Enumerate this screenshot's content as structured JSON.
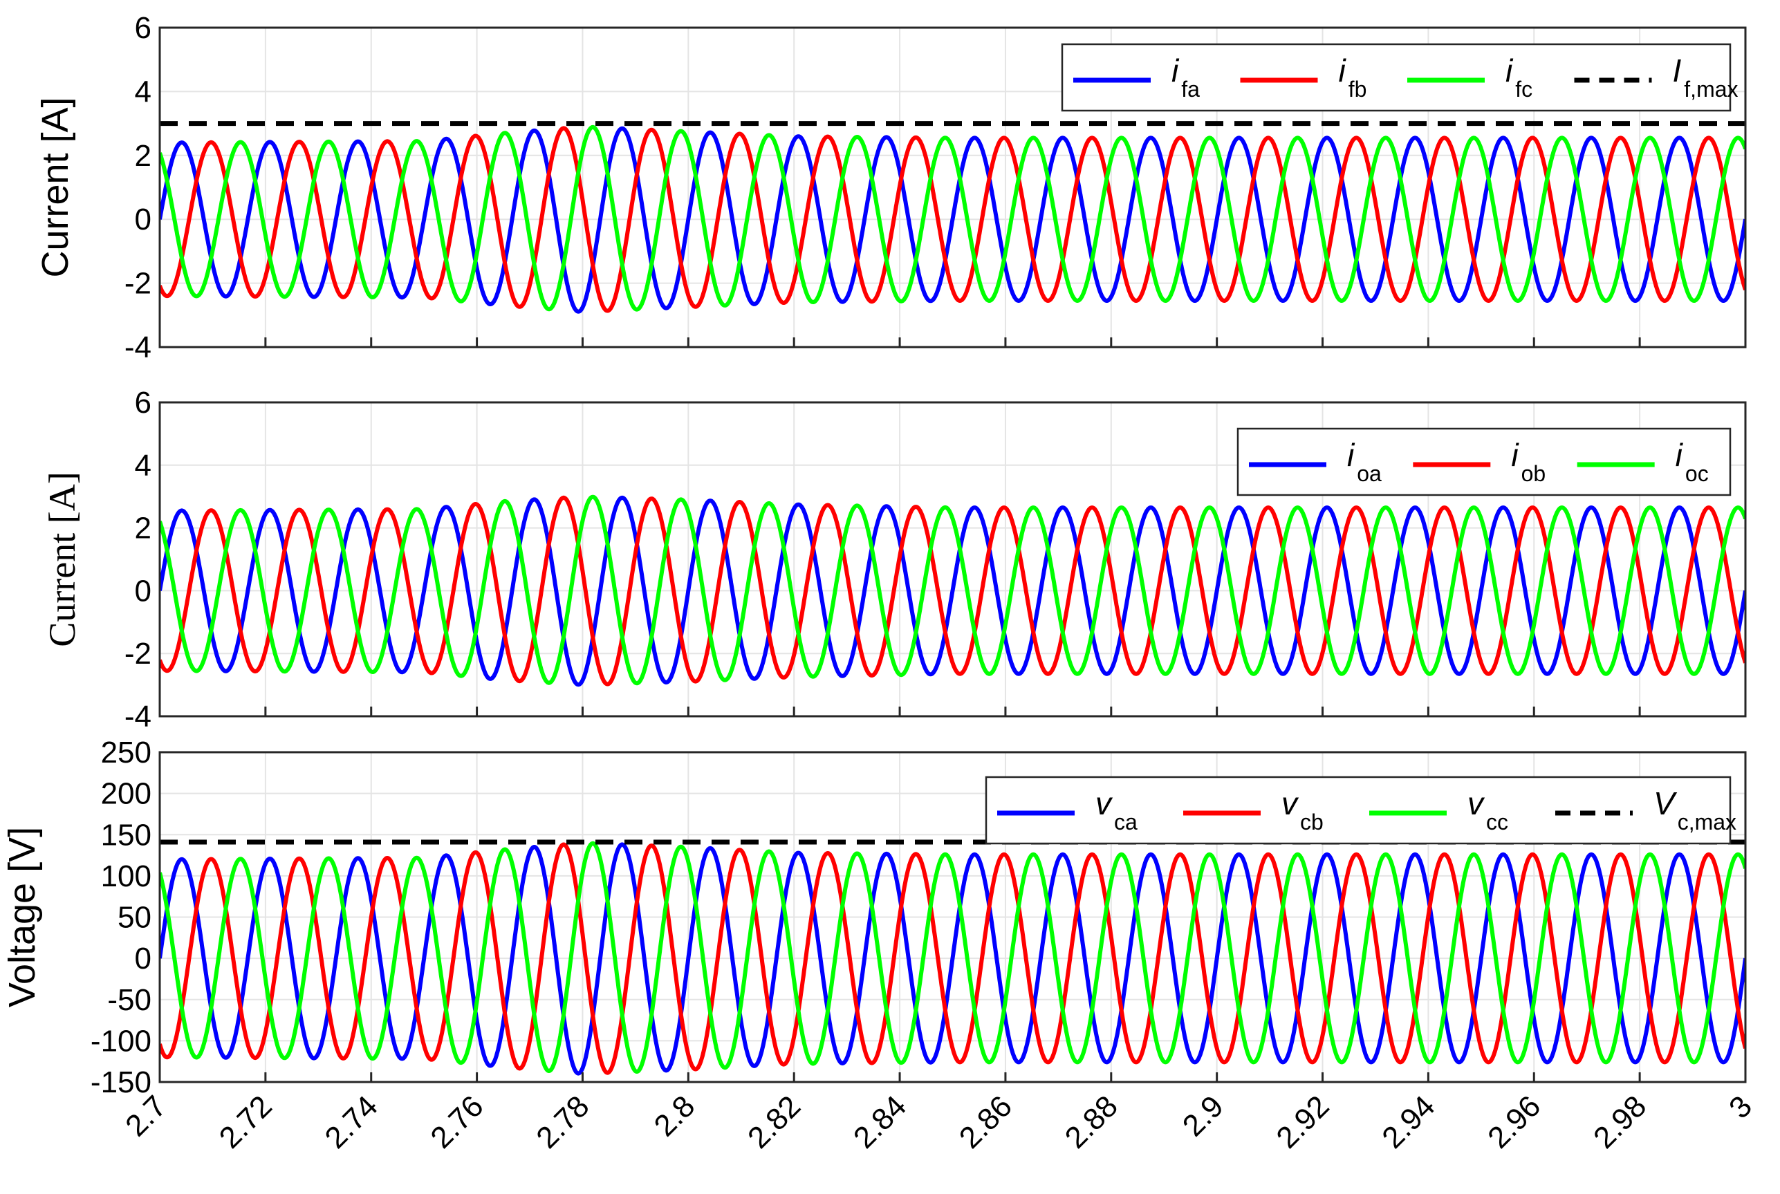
{
  "chart_data": [
    {
      "type": "line",
      "ylabel": "Current [A]",
      "xlim": [
        2.7,
        3.0
      ],
      "ylim": [
        -4,
        6
      ],
      "yticks": [
        "-4",
        "-2",
        "0",
        "2",
        "4",
        "6"
      ],
      "grid": true,
      "legend_position": "top-right",
      "frequency_hz": 60,
      "series": [
        {
          "name": "i",
          "subscript": "fa",
          "color": "#0000ff",
          "style": "solid",
          "phase_deg": 0,
          "amplitude_points": [
            [
              2.7,
              2.4
            ],
            [
              2.75,
              2.45
            ],
            [
              2.765,
              2.7
            ],
            [
              2.78,
              2.9
            ],
            [
              2.8,
              2.75
            ],
            [
              2.82,
              2.6
            ],
            [
              2.85,
              2.55
            ],
            [
              3.0,
              2.55
            ]
          ]
        },
        {
          "name": "i",
          "subscript": "fb",
          "color": "#ff0000",
          "style": "solid",
          "phase_deg": -120,
          "amplitude_points": [
            [
              2.7,
              2.4
            ],
            [
              2.75,
              2.45
            ],
            [
              2.765,
              2.7
            ],
            [
              2.78,
              2.9
            ],
            [
              2.8,
              2.75
            ],
            [
              2.82,
              2.6
            ],
            [
              2.85,
              2.55
            ],
            [
              3.0,
              2.55
            ]
          ]
        },
        {
          "name": "i",
          "subscript": "fc",
          "color": "#00ff00",
          "style": "solid",
          "phase_deg": 120,
          "amplitude_points": [
            [
              2.7,
              2.4
            ],
            [
              2.75,
              2.45
            ],
            [
              2.765,
              2.7
            ],
            [
              2.78,
              2.9
            ],
            [
              2.8,
              2.75
            ],
            [
              2.82,
              2.6
            ],
            [
              2.85,
              2.55
            ],
            [
              3.0,
              2.55
            ]
          ]
        },
        {
          "name": "I",
          "subscript": "f,max",
          "color": "#000000",
          "style": "dashed",
          "constant": 3.0
        }
      ]
    },
    {
      "type": "line",
      "ylabel": "Current [A]",
      "xlim": [
        2.7,
        3.0
      ],
      "ylim": [
        -4,
        6
      ],
      "yticks": [
        "-4",
        "-2",
        "0",
        "2",
        "4",
        "6"
      ],
      "grid": true,
      "legend_position": "top-right",
      "frequency_hz": 60,
      "series": [
        {
          "name": "i",
          "subscript": "oa",
          "color": "#0000ff",
          "style": "solid",
          "phase_deg": 0,
          "amplitude_points": [
            [
              2.7,
              2.55
            ],
            [
              2.75,
              2.6
            ],
            [
              2.765,
              2.85
            ],
            [
              2.78,
              3.0
            ],
            [
              2.8,
              2.9
            ],
            [
              2.82,
              2.75
            ],
            [
              2.85,
              2.65
            ],
            [
              3.0,
              2.65
            ]
          ]
        },
        {
          "name": "i",
          "subscript": "ob",
          "color": "#ff0000",
          "style": "solid",
          "phase_deg": -120,
          "amplitude_points": [
            [
              2.7,
              2.55
            ],
            [
              2.75,
              2.6
            ],
            [
              2.765,
              2.85
            ],
            [
              2.78,
              3.0
            ],
            [
              2.8,
              2.9
            ],
            [
              2.82,
              2.75
            ],
            [
              2.85,
              2.65
            ],
            [
              3.0,
              2.65
            ]
          ]
        },
        {
          "name": "i",
          "subscript": "oc",
          "color": "#00ff00",
          "style": "solid",
          "phase_deg": 120,
          "amplitude_points": [
            [
              2.7,
              2.55
            ],
            [
              2.75,
              2.6
            ],
            [
              2.765,
              2.85
            ],
            [
              2.78,
              3.0
            ],
            [
              2.8,
              2.9
            ],
            [
              2.82,
              2.75
            ],
            [
              2.85,
              2.65
            ],
            [
              3.0,
              2.65
            ]
          ]
        }
      ]
    },
    {
      "type": "line",
      "ylabel": "Voltage [V]",
      "xlim": [
        2.7,
        3.0
      ],
      "ylim": [
        -150,
        250
      ],
      "yticks": [
        "-150",
        "-100",
        "-50",
        "0",
        "50",
        "100",
        "150",
        "200",
        "250"
      ],
      "xticks": [
        "2.7",
        "2.72",
        "2.74",
        "2.76",
        "2.78",
        "2.8",
        "2.82",
        "2.84",
        "2.86",
        "2.88",
        "2.9",
        "2.92",
        "2.94",
        "2.96",
        "2.98",
        "3"
      ],
      "grid": true,
      "legend_position": "top-right",
      "frequency_hz": 60,
      "series": [
        {
          "name": "v",
          "subscript": "ca",
          "color": "#0000ff",
          "style": "solid",
          "phase_deg": 0,
          "amplitude_points": [
            [
              2.7,
              120
            ],
            [
              2.75,
              122
            ],
            [
              2.765,
              132
            ],
            [
              2.78,
              140
            ],
            [
              2.8,
              135
            ],
            [
              2.82,
              128
            ],
            [
              2.85,
              126
            ],
            [
              3.0,
              126
            ]
          ]
        },
        {
          "name": "v",
          "subscript": "cb",
          "color": "#ff0000",
          "style": "solid",
          "phase_deg": -120,
          "amplitude_points": [
            [
              2.7,
              120
            ],
            [
              2.75,
              122
            ],
            [
              2.765,
              132
            ],
            [
              2.78,
              140
            ],
            [
              2.8,
              135
            ],
            [
              2.82,
              128
            ],
            [
              2.85,
              126
            ],
            [
              3.0,
              126
            ]
          ]
        },
        {
          "name": "v",
          "subscript": "cc",
          "color": "#00ff00",
          "style": "solid",
          "phase_deg": 120,
          "amplitude_points": [
            [
              2.7,
              120
            ],
            [
              2.75,
              122
            ],
            [
              2.765,
              132
            ],
            [
              2.78,
              140
            ],
            [
              2.8,
              135
            ],
            [
              2.82,
              128
            ],
            [
              2.85,
              126
            ],
            [
              3.0,
              126
            ]
          ]
        },
        {
          "name": "V",
          "subscript": "c,max",
          "color": "#000000",
          "style": "dashed",
          "constant": 141
        }
      ]
    }
  ]
}
